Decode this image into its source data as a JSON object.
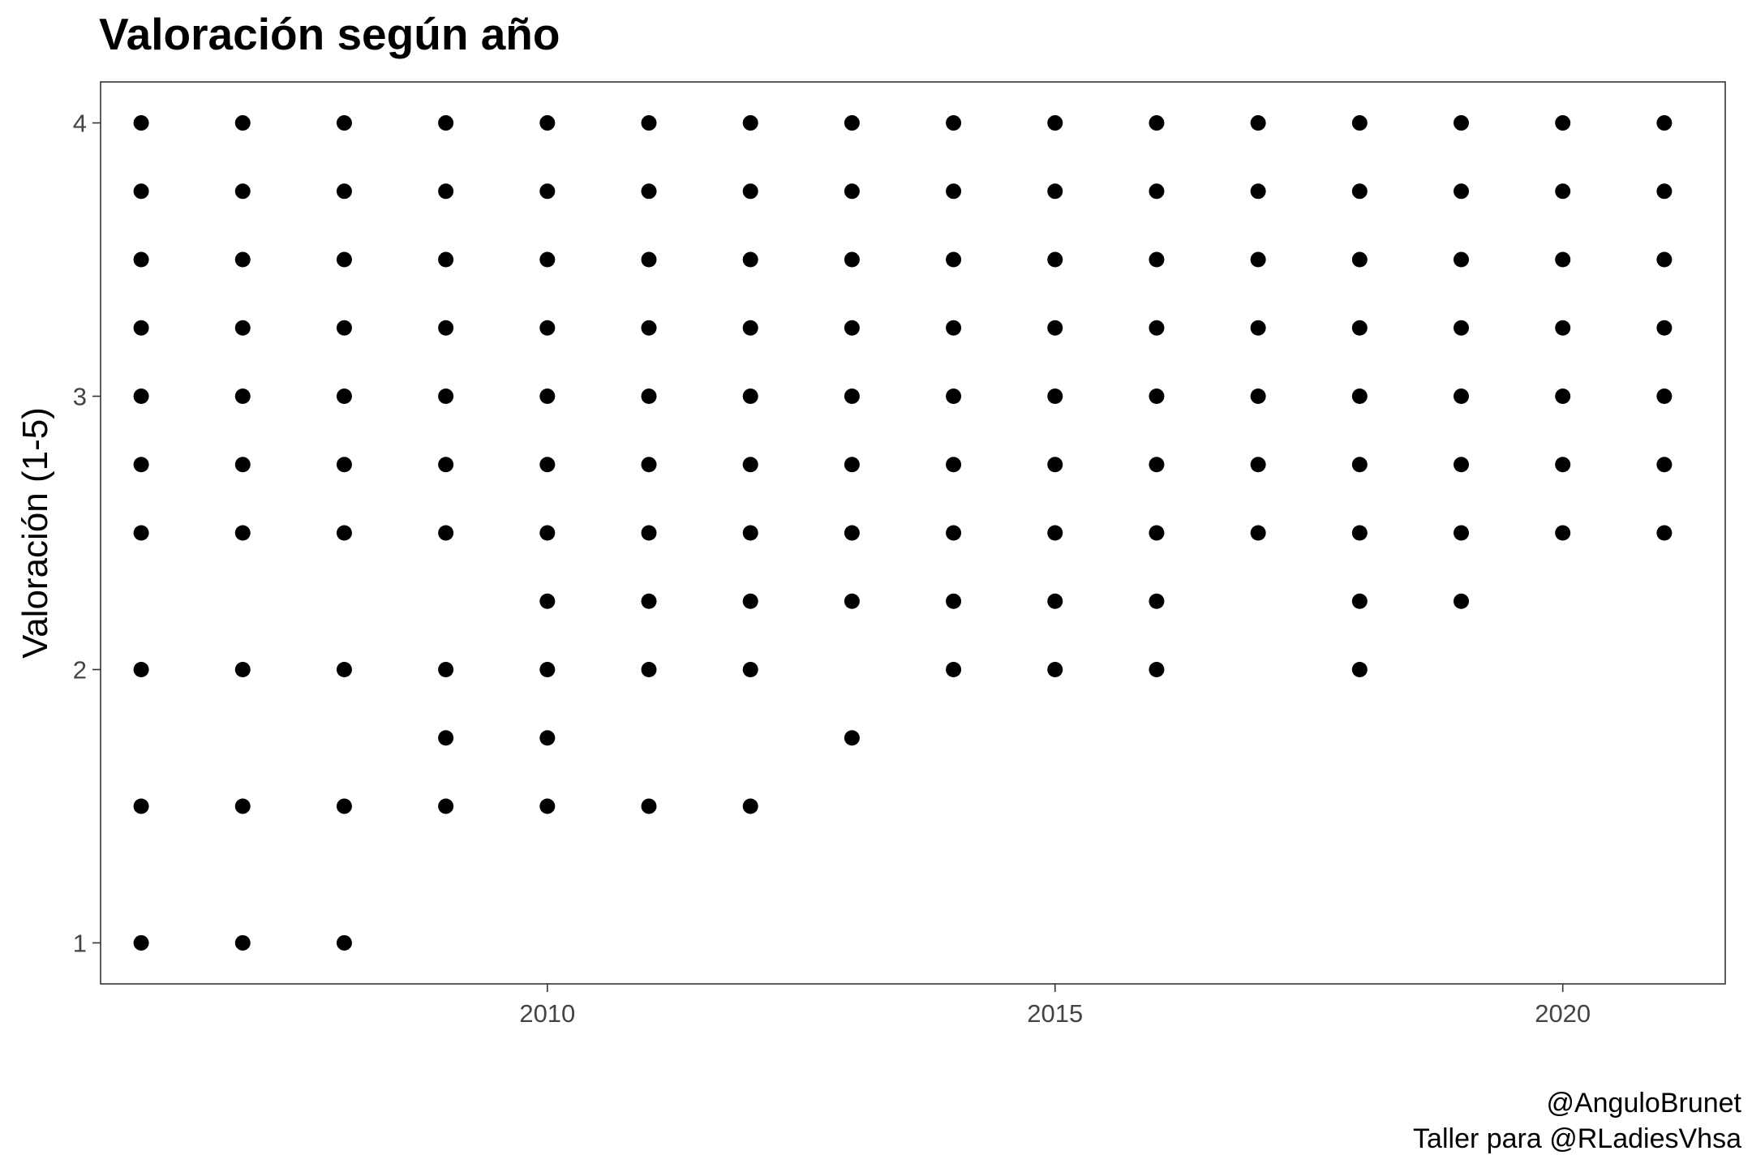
{
  "title": "Valoración según año",
  "caption": {
    "line1": "@AnguloBrunet",
    "line2": "Taller para @RLadiesVhsa"
  },
  "chart_data": {
    "type": "scatter",
    "title": "Valoración según año",
    "xlabel": "",
    "ylabel": "Valoración (1-5)",
    "xlim": [
      2005.6,
      2021.6
    ],
    "ylim": [
      0.85,
      4.15
    ],
    "xticks": [
      2010,
      2015,
      2020
    ],
    "yticks": [
      1,
      2,
      3,
      4
    ],
    "grid": false,
    "point_color": "#000000",
    "series": [
      {
        "points": [
          {
            "x": 2006,
            "y": [
              4,
              3.75,
              3.5,
              3.25,
              3,
              2.75,
              2.5,
              2,
              1.5,
              1
            ]
          },
          {
            "x": 2007,
            "y": [
              4,
              3.75,
              3.5,
              3.25,
              3,
              2.75,
              2.5,
              2,
              1.5,
              1
            ]
          },
          {
            "x": 2008,
            "y": [
              4,
              3.75,
              3.5,
              3.25,
              3,
              2.75,
              2.5,
              2,
              1.5,
              1
            ]
          },
          {
            "x": 2009,
            "y": [
              4,
              3.75,
              3.5,
              3.25,
              3,
              2.75,
              2.5,
              2,
              1.75,
              1.5
            ]
          },
          {
            "x": 2010,
            "y": [
              4,
              3.75,
              3.5,
              3.25,
              3,
              2.75,
              2.5,
              2.25,
              2,
              1.75,
              1.5
            ]
          },
          {
            "x": 2011,
            "y": [
              4,
              3.75,
              3.5,
              3.25,
              3,
              2.75,
              2.5,
              2.25,
              2,
              1.5
            ]
          },
          {
            "x": 2012,
            "y": [
              4,
              3.75,
              3.5,
              3.25,
              3,
              2.75,
              2.5,
              2.25,
              2,
              1.5
            ]
          },
          {
            "x": 2013,
            "y": [
              4,
              3.75,
              3.5,
              3.25,
              3,
              2.75,
              2.5,
              2.25,
              1.75
            ]
          },
          {
            "x": 2014,
            "y": [
              4,
              3.75,
              3.5,
              3.25,
              3,
              2.75,
              2.5,
              2.25,
              2
            ]
          },
          {
            "x": 2015,
            "y": [
              4,
              3.75,
              3.5,
              3.25,
              3,
              2.75,
              2.5,
              2.25,
              2
            ]
          },
          {
            "x": 2016,
            "y": [
              4,
              3.75,
              3.5,
              3.25,
              3,
              2.75,
              2.5,
              2.25,
              2
            ]
          },
          {
            "x": 2017,
            "y": [
              4,
              3.75,
              3.5,
              3.25,
              3,
              2.75,
              2.5
            ]
          },
          {
            "x": 2018,
            "y": [
              4,
              3.75,
              3.5,
              3.25,
              3,
              2.75,
              2.5,
              2.25,
              2
            ]
          },
          {
            "x": 2019,
            "y": [
              4,
              3.75,
              3.5,
              3.25,
              3,
              2.75,
              2.5,
              2.25
            ]
          },
          {
            "x": 2020,
            "y": [
              4,
              3.75,
              3.5,
              3.25,
              3,
              2.75,
              2.5
            ]
          },
          {
            "x": 2021,
            "y": [
              4,
              3.75,
              3.5,
              3.25,
              3,
              2.75,
              2.5
            ]
          }
        ]
      }
    ]
  }
}
